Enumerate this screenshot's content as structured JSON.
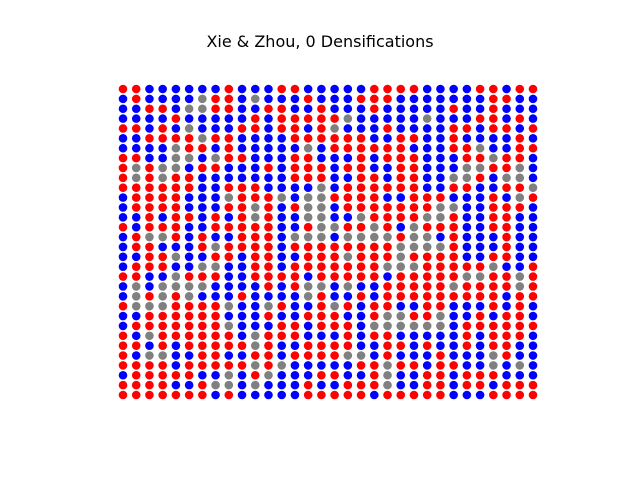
{
  "chart_data": {
    "type": "scatter",
    "title": "Xie & Zhou, 0 Densifications",
    "xlabel": "",
    "ylabel": "",
    "axes_visible": false,
    "grid": false,
    "legend": "none",
    "marker": "circle",
    "grid_size": [
      32,
      32
    ],
    "colors": {
      "R": "#ff0000",
      "B": "#0000ff",
      "G": "#808080"
    },
    "rows": [
      "RRBBBBBBRBBBRRBBBBBRRRRBBBBRRBRR",
      "BRBBBBGRRBGBBBRBBBRRRBBBBBBBRRBB",
      "BBRRBGGRRBBRRBBRBBBRBBBBBRBBRBBB",
      "BBBBRBBBBBRBRRRRRGBBBBBGBBBRRBRB",
      "RRBRBGBBBRRBRRBRGBBBRBBBBRRBRRBR",
      "BBRRRRGRRBBBBRRRRRRBBRRBBRBBBBRB",
      "BBBBGRRBRBBBBBGBRRRRRRBBBRRGBBRR",
      "RRBBGGBGRRBBBRRBBBRBRRRBBBRRGRRB",
      "RGRGGBRRBBBRBRRRBRRBBRRBBBGGRRGB",
      "RGRGRRBBBBBBBRRRBBRRBRRBBGGRBGGB",
      "RRRRRRBBRRRBBBBGBRRRRRRBBRRBBRRG",
      "BRRRRBBBGRRRGBGGRRRRBBRRRBBBRBGR",
      "BRRRRBBBRRGRBRGGBRRRRRRRGGBBRRRB",
      "BBRBRRBRBRGRBBGGBBGRRRRGGRBBRRBB",
      "RBRRRBBRRRRRBBRGGRRGRBGRRRBBRRBB",
      "BRGGRBRBBRRRBGGGBGGGGRGGBRBBBRBB",
      "BRRBBBRGRRRRBRRRRRRRRGGGGRBBBRBB",
      "BBRRGBBRRBRRBBRRRGRRRGRRRRBBRRBB",
      "BRRRBBGGBBRRBRRRRRRRGGGRRRRRGBBR",
      "RRBBGRRRBBRRRRBRRRRRBRRRRRGGRRGR",
      "BGBGGGGBBBBRBRGGBGBBRRRRRGRRRRGR",
      "BGRGRGBBBRBBBBGRBBRBRRRRRRRRRBRR",
      "RGGGRRRRGBBGRBBRGRBRRBBRRBBBRBRB",
      "BBRRRRRRBBBRBBRRRBBRGGRRGBBRBRRB",
      "BRRRRRRRGBBBRRBRRRBGGGGGGBRRRRRR",
      "RBGRRRRRRBGRRRBBBRBRRBBBBBRBRRRB",
      "RRBRBRRRRRGRBBRRRRBBRRBRBBRBRRBB",
      "RBGGBBRRBBRRBRRRRGGBRBBBRBBBGRBB",
      "RRRRBRRRRRGRGBBBBBRRGRRBRRBBGBGB",
      "BRRRRRBBGBRGBBBRRBBRGBBRRBRRRBBB",
      "RRRRBBRGGBGBBBRBBRRRGBBRRBRRBRRR",
      "RRRRRRRBRBBBBBRRRRRBRRRRRBBBRRRR"
    ]
  }
}
